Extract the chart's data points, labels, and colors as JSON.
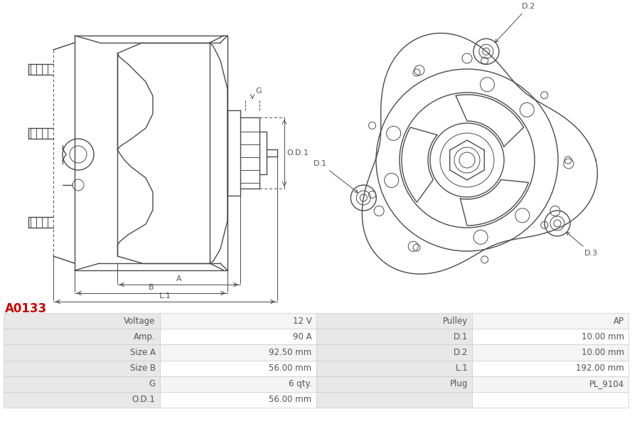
{
  "title": "A0133",
  "title_color": "#cc0000",
  "background_color": "#ffffff",
  "line_color": "#4a4a4a",
  "table": {
    "rows_left": [
      [
        "Voltage",
        "12 V"
      ],
      [
        "Amp.",
        "90 A"
      ],
      [
        "Size A",
        "92.50 mm"
      ],
      [
        "Size B",
        "56.00 mm"
      ],
      [
        "G",
        "6 qty."
      ],
      [
        "O.D.1",
        "56.00 mm"
      ]
    ],
    "rows_right": [
      [
        "Pulley",
        "AP"
      ],
      [
        "D.1",
        "10.00 mm"
      ],
      [
        "D.2",
        "10.00 mm"
      ],
      [
        "L.1",
        "192.00 mm"
      ],
      [
        "Plug",
        "PL_9104"
      ],
      [
        "",
        ""
      ]
    ]
  },
  "table_header_bg": "#e8e8e8",
  "table_row_bg_odd": "#f5f5f5",
  "table_row_bg_even": "#ffffff",
  "table_border_color": "#cccccc",
  "label_color": "#555555"
}
